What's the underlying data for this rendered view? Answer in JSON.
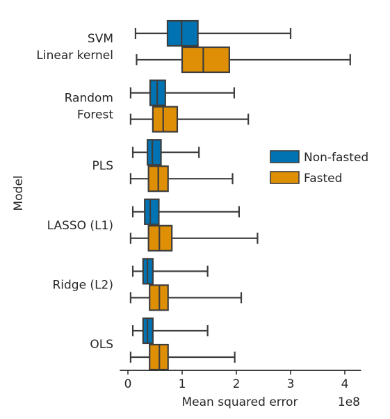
{
  "chart_data": {
    "type": "boxplot",
    "orientation": "horizontal",
    "xlabel": "Mean squared error",
    "ylabel": "Model",
    "x_offset_label": "1e8",
    "x_scale_multiplier": 100000000,
    "xlim": [
      -0.15,
      4.3
    ],
    "xticks": [
      0,
      1,
      2,
      3,
      4
    ],
    "xtick_labels": [
      "0",
      "1",
      "2",
      "3",
      "4"
    ],
    "legend_position": "right",
    "colors": {
      "Non-fasted": "#0173b2",
      "Fasted": "#de8f05",
      "stroke": "#3d3d3d"
    },
    "categories": [
      [
        "SVM",
        "Linear kernel"
      ],
      [
        "Random",
        "Forest"
      ],
      [
        "PLS"
      ],
      [
        "LASSO (L1)"
      ],
      [
        "Ridge (L2)"
      ],
      [
        "OLS"
      ]
    ],
    "series": [
      {
        "name": "Non-fasted",
        "boxes": [
          {
            "min": 0.14,
            "q1": 0.73,
            "median": 0.99,
            "q3": 1.29,
            "max": 3.0
          },
          {
            "min": 0.05,
            "q1": 0.41,
            "median": 0.54,
            "q3": 0.69,
            "max": 1.96
          },
          {
            "min": 0.09,
            "q1": 0.36,
            "median": 0.45,
            "q3": 0.61,
            "max": 1.31
          },
          {
            "min": 0.09,
            "q1": 0.31,
            "median": 0.41,
            "q3": 0.57,
            "max": 2.05
          },
          {
            "min": 0.09,
            "q1": 0.28,
            "median": 0.36,
            "q3": 0.46,
            "max": 1.47
          },
          {
            "min": 0.09,
            "q1": 0.28,
            "median": 0.36,
            "q3": 0.46,
            "max": 1.47
          }
        ]
      },
      {
        "name": "Fasted",
        "boxes": [
          {
            "min": 0.16,
            "q1": 1.0,
            "median": 1.39,
            "q3": 1.87,
            "max": 4.1
          },
          {
            "min": 0.05,
            "q1": 0.46,
            "median": 0.65,
            "q3": 0.91,
            "max": 2.22
          },
          {
            "min": 0.05,
            "q1": 0.38,
            "median": 0.56,
            "q3": 0.74,
            "max": 1.93
          },
          {
            "min": 0.05,
            "q1": 0.38,
            "median": 0.58,
            "q3": 0.81,
            "max": 2.39
          },
          {
            "min": 0.05,
            "q1": 0.4,
            "median": 0.58,
            "q3": 0.74,
            "max": 2.09
          },
          {
            "min": 0.05,
            "q1": 0.4,
            "median": 0.58,
            "q3": 0.74,
            "max": 1.97
          }
        ]
      }
    ]
  }
}
